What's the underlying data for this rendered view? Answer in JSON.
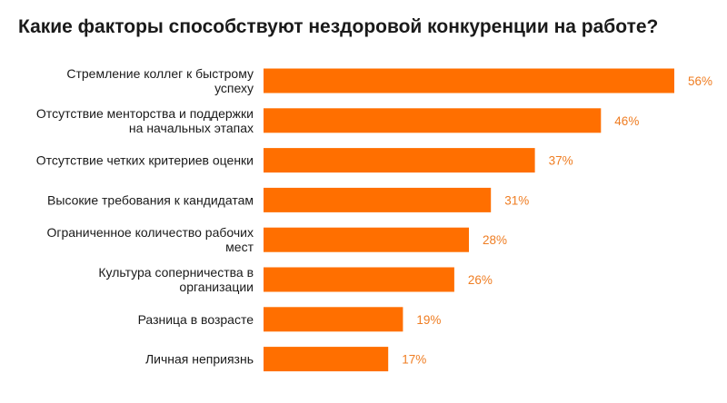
{
  "chart_data": {
    "type": "bar",
    "orientation": "horizontal",
    "title": "Какие факторы способствуют нездоровой конкуренции на работе?",
    "categories": [
      [
        "Стремление коллег к быстрому",
        "успеху"
      ],
      [
        "Отсутствие менторства и поддержки",
        "на начальных этапах"
      ],
      [
        "Отсутствие четких критериев оценки"
      ],
      [
        "Высокие требования к кандидатам"
      ],
      [
        "Ограниченное количество рабочих",
        "мест"
      ],
      [
        "Культура соперничества в",
        "организации"
      ],
      [
        "Разница в возрасте"
      ],
      [
        "Личная неприязнь"
      ]
    ],
    "values": [
      56,
      46,
      37,
      31,
      28,
      26,
      19,
      17
    ],
    "value_labels": [
      "56%",
      "46%",
      "37%",
      "31%",
      "28%",
      "26%",
      "19%",
      "17%"
    ],
    "unit": "%",
    "bar_color": "#ff6f00",
    "label_color": "#ef7d22",
    "grid": false,
    "legend": "none"
  }
}
